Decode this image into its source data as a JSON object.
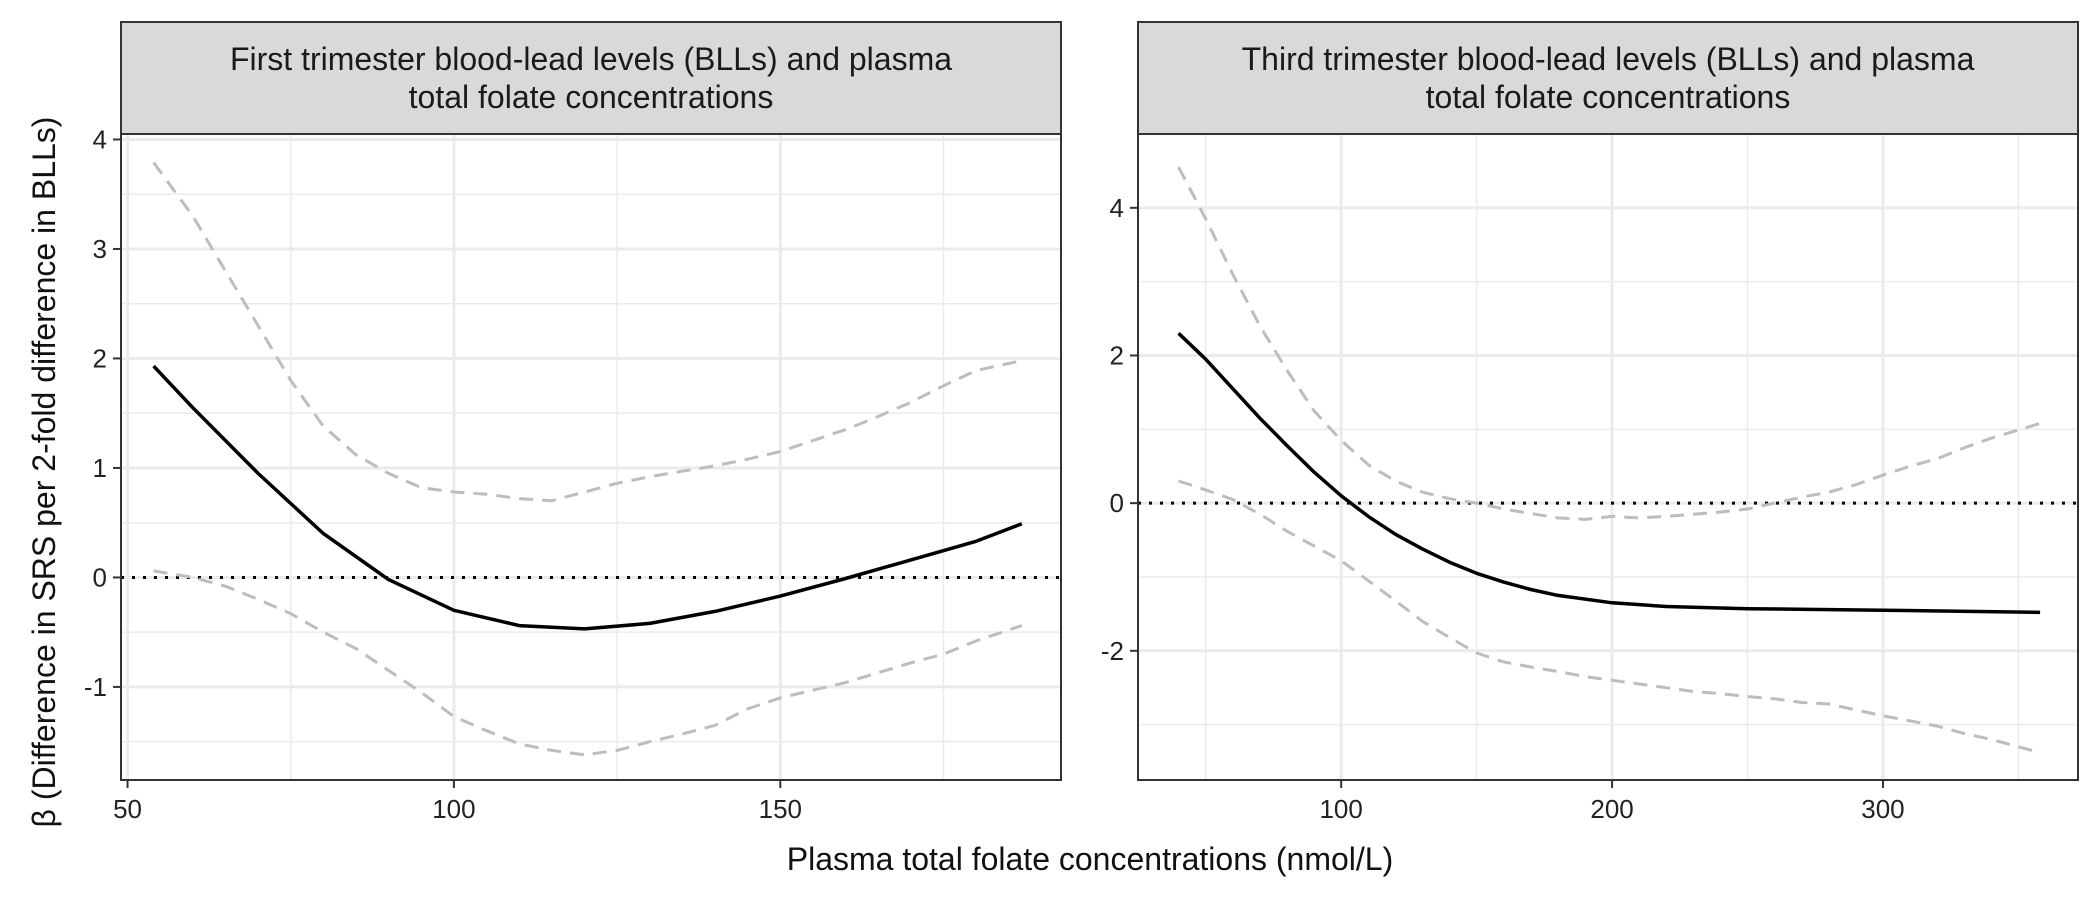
{
  "colors": {
    "fit": "#000000",
    "ci": "#bdbdbd",
    "zero_line": "#000000",
    "strip_bg": "#d9d9d9",
    "grid": "#ebebeb",
    "panel_border": "#333333"
  },
  "axes": {
    "xlabel": "Plasma total folate concentrations (nmol/L)",
    "ylabel": "β (Difference in SRS per 2-fold difference in BLLs)"
  },
  "chart_data": [
    {
      "type": "line",
      "title_lines": [
        "First trimester blood-lead levels (BLLs) and plasma",
        "total folate concentrations"
      ],
      "xlim": [
        49,
        193
      ],
      "ylim": [
        -1.85,
        4.05
      ],
      "xticks": [
        50,
        100,
        150
      ],
      "xtick_labels": [
        "50",
        "100",
        "150"
      ],
      "yticks": [
        -1,
        0,
        1,
        2,
        3,
        4
      ],
      "ytick_labels": [
        "-1",
        "0",
        "1",
        "2",
        "3",
        "4"
      ],
      "reference_y": 0,
      "series": [
        {
          "role": "estimate",
          "x": [
            54,
            60,
            70,
            80,
            90,
            100,
            110,
            120,
            130,
            140,
            150,
            160,
            170,
            180,
            187
          ],
          "y": [
            1.93,
            1.55,
            0.95,
            0.4,
            -0.02,
            -0.3,
            -0.44,
            -0.47,
            -0.42,
            -0.31,
            -0.17,
            -0.01,
            0.16,
            0.33,
            0.49
          ]
        },
        {
          "role": "upper_ci",
          "x": [
            54,
            60,
            65,
            70,
            75,
            80,
            85,
            90,
            95,
            100,
            105,
            110,
            115,
            120,
            125,
            130,
            135,
            140,
            145,
            150,
            155,
            160,
            165,
            170,
            175,
            180,
            187
          ],
          "y": [
            3.79,
            3.3,
            2.8,
            2.3,
            1.8,
            1.38,
            1.12,
            0.95,
            0.82,
            0.78,
            0.76,
            0.72,
            0.7,
            0.78,
            0.86,
            0.92,
            0.97,
            1.02,
            1.08,
            1.15,
            1.25,
            1.35,
            1.47,
            1.6,
            1.75,
            1.89,
            1.98
          ]
        },
        {
          "role": "lower_ci",
          "x": [
            54,
            60,
            65,
            70,
            75,
            80,
            85,
            90,
            95,
            100,
            105,
            110,
            115,
            120,
            125,
            130,
            135,
            140,
            145,
            150,
            155,
            160,
            165,
            170,
            175,
            180,
            187
          ],
          "y": [
            0.06,
            0.0,
            -0.08,
            -0.2,
            -0.33,
            -0.5,
            -0.65,
            -0.85,
            -1.05,
            -1.27,
            -1.4,
            -1.52,
            -1.58,
            -1.62,
            -1.58,
            -1.5,
            -1.43,
            -1.35,
            -1.2,
            -1.1,
            -1.03,
            -0.96,
            -0.87,
            -0.78,
            -0.7,
            -0.58,
            -0.44
          ]
        }
      ]
    },
    {
      "type": "line",
      "title_lines": [
        "Third trimester blood-lead levels (BLLs) and plasma",
        "total folate concentrations"
      ],
      "xlim": [
        25,
        372
      ],
      "ylim": [
        -3.75,
        5.0
      ],
      "xticks": [
        100,
        200,
        300
      ],
      "xtick_labels": [
        "100",
        "200",
        "300"
      ],
      "yticks": [
        -2,
        0,
        2,
        4
      ],
      "ytick_labels": [
        "-2",
        "0",
        "2",
        "4"
      ],
      "reference_y": 0,
      "series": [
        {
          "role": "estimate",
          "x": [
            40,
            50,
            60,
            70,
            80,
            90,
            100,
            110,
            120,
            130,
            140,
            150,
            160,
            170,
            180,
            200,
            220,
            250,
            300,
            358
          ],
          "y": [
            2.3,
            1.95,
            1.55,
            1.15,
            0.78,
            0.42,
            0.1,
            -0.18,
            -0.42,
            -0.62,
            -0.8,
            -0.95,
            -1.07,
            -1.17,
            -1.25,
            -1.35,
            -1.4,
            -1.43,
            -1.45,
            -1.48
          ]
        },
        {
          "role": "upper_ci",
          "x": [
            40,
            50,
            60,
            70,
            80,
            90,
            100,
            110,
            120,
            130,
            140,
            150,
            160,
            170,
            180,
            190,
            200,
            210,
            220,
            230,
            240,
            250,
            260,
            270,
            280,
            290,
            300,
            310,
            320,
            330,
            340,
            358
          ],
          "y": [
            4.55,
            3.85,
            3.1,
            2.4,
            1.8,
            1.25,
            0.85,
            0.52,
            0.3,
            0.15,
            0.06,
            0.0,
            -0.08,
            -0.14,
            -0.2,
            -0.22,
            -0.18,
            -0.2,
            -0.18,
            -0.15,
            -0.12,
            -0.08,
            0.0,
            0.08,
            0.15,
            0.25,
            0.38,
            0.5,
            0.6,
            0.75,
            0.88,
            1.08
          ]
        },
        {
          "role": "lower_ci",
          "x": [
            40,
            50,
            60,
            70,
            80,
            90,
            100,
            110,
            120,
            130,
            140,
            150,
            160,
            170,
            180,
            190,
            200,
            210,
            220,
            230,
            240,
            250,
            260,
            270,
            280,
            290,
            300,
            310,
            320,
            330,
            340,
            358
          ],
          "y": [
            0.3,
            0.18,
            0.05,
            -0.15,
            -0.38,
            -0.58,
            -0.78,
            -1.05,
            -1.32,
            -1.6,
            -1.82,
            -2.03,
            -2.15,
            -2.22,
            -2.28,
            -2.35,
            -2.4,
            -2.45,
            -2.5,
            -2.55,
            -2.58,
            -2.62,
            -2.65,
            -2.7,
            -2.72,
            -2.8,
            -2.88,
            -2.95,
            -3.02,
            -3.12,
            -3.2,
            -3.38
          ]
        }
      ]
    }
  ]
}
